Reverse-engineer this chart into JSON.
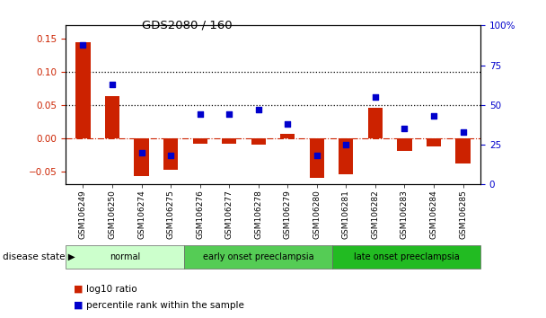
{
  "title": "GDS2080 / 160",
  "samples": [
    "GSM106249",
    "GSM106250",
    "GSM106274",
    "GSM106275",
    "GSM106276",
    "GSM106277",
    "GSM106278",
    "GSM106279",
    "GSM106280",
    "GSM106281",
    "GSM106282",
    "GSM106283",
    "GSM106284",
    "GSM106285"
  ],
  "log10_ratio": [
    0.144,
    0.063,
    -0.057,
    -0.048,
    -0.008,
    -0.008,
    -0.01,
    0.006,
    -0.06,
    -0.055,
    0.046,
    -0.02,
    -0.012,
    -0.038
  ],
  "percentile_rank": [
    88,
    63,
    20,
    18,
    44,
    44,
    47,
    38,
    18,
    25,
    55,
    35,
    43,
    33
  ],
  "groups": [
    {
      "label": "normal",
      "start": 0,
      "end": 4,
      "color": "#ccffcc"
    },
    {
      "label": "early onset preeclampsia",
      "start": 4,
      "end": 9,
      "color": "#55cc55"
    },
    {
      "label": "late onset preeclampsia",
      "start": 9,
      "end": 14,
      "color": "#22bb22"
    }
  ],
  "bar_color": "#cc2200",
  "dot_color": "#0000cc",
  "left_ylim": [
    -0.07,
    0.17
  ],
  "right_ylim": [
    0,
    100
  ],
  "left_yticks": [
    -0.05,
    0,
    0.05,
    0.1,
    0.15
  ],
  "right_yticks": [
    0,
    25,
    50,
    75,
    100
  ],
  "right_yticklabels": [
    "0",
    "25",
    "50",
    "75",
    "100%"
  ],
  "dotted_lines": [
    0.05,
    0.1
  ],
  "background_color": "#ffffff",
  "legend_log10": "log10 ratio",
  "legend_pct": "percentile rank within the sample",
  "disease_state_label": "disease state"
}
